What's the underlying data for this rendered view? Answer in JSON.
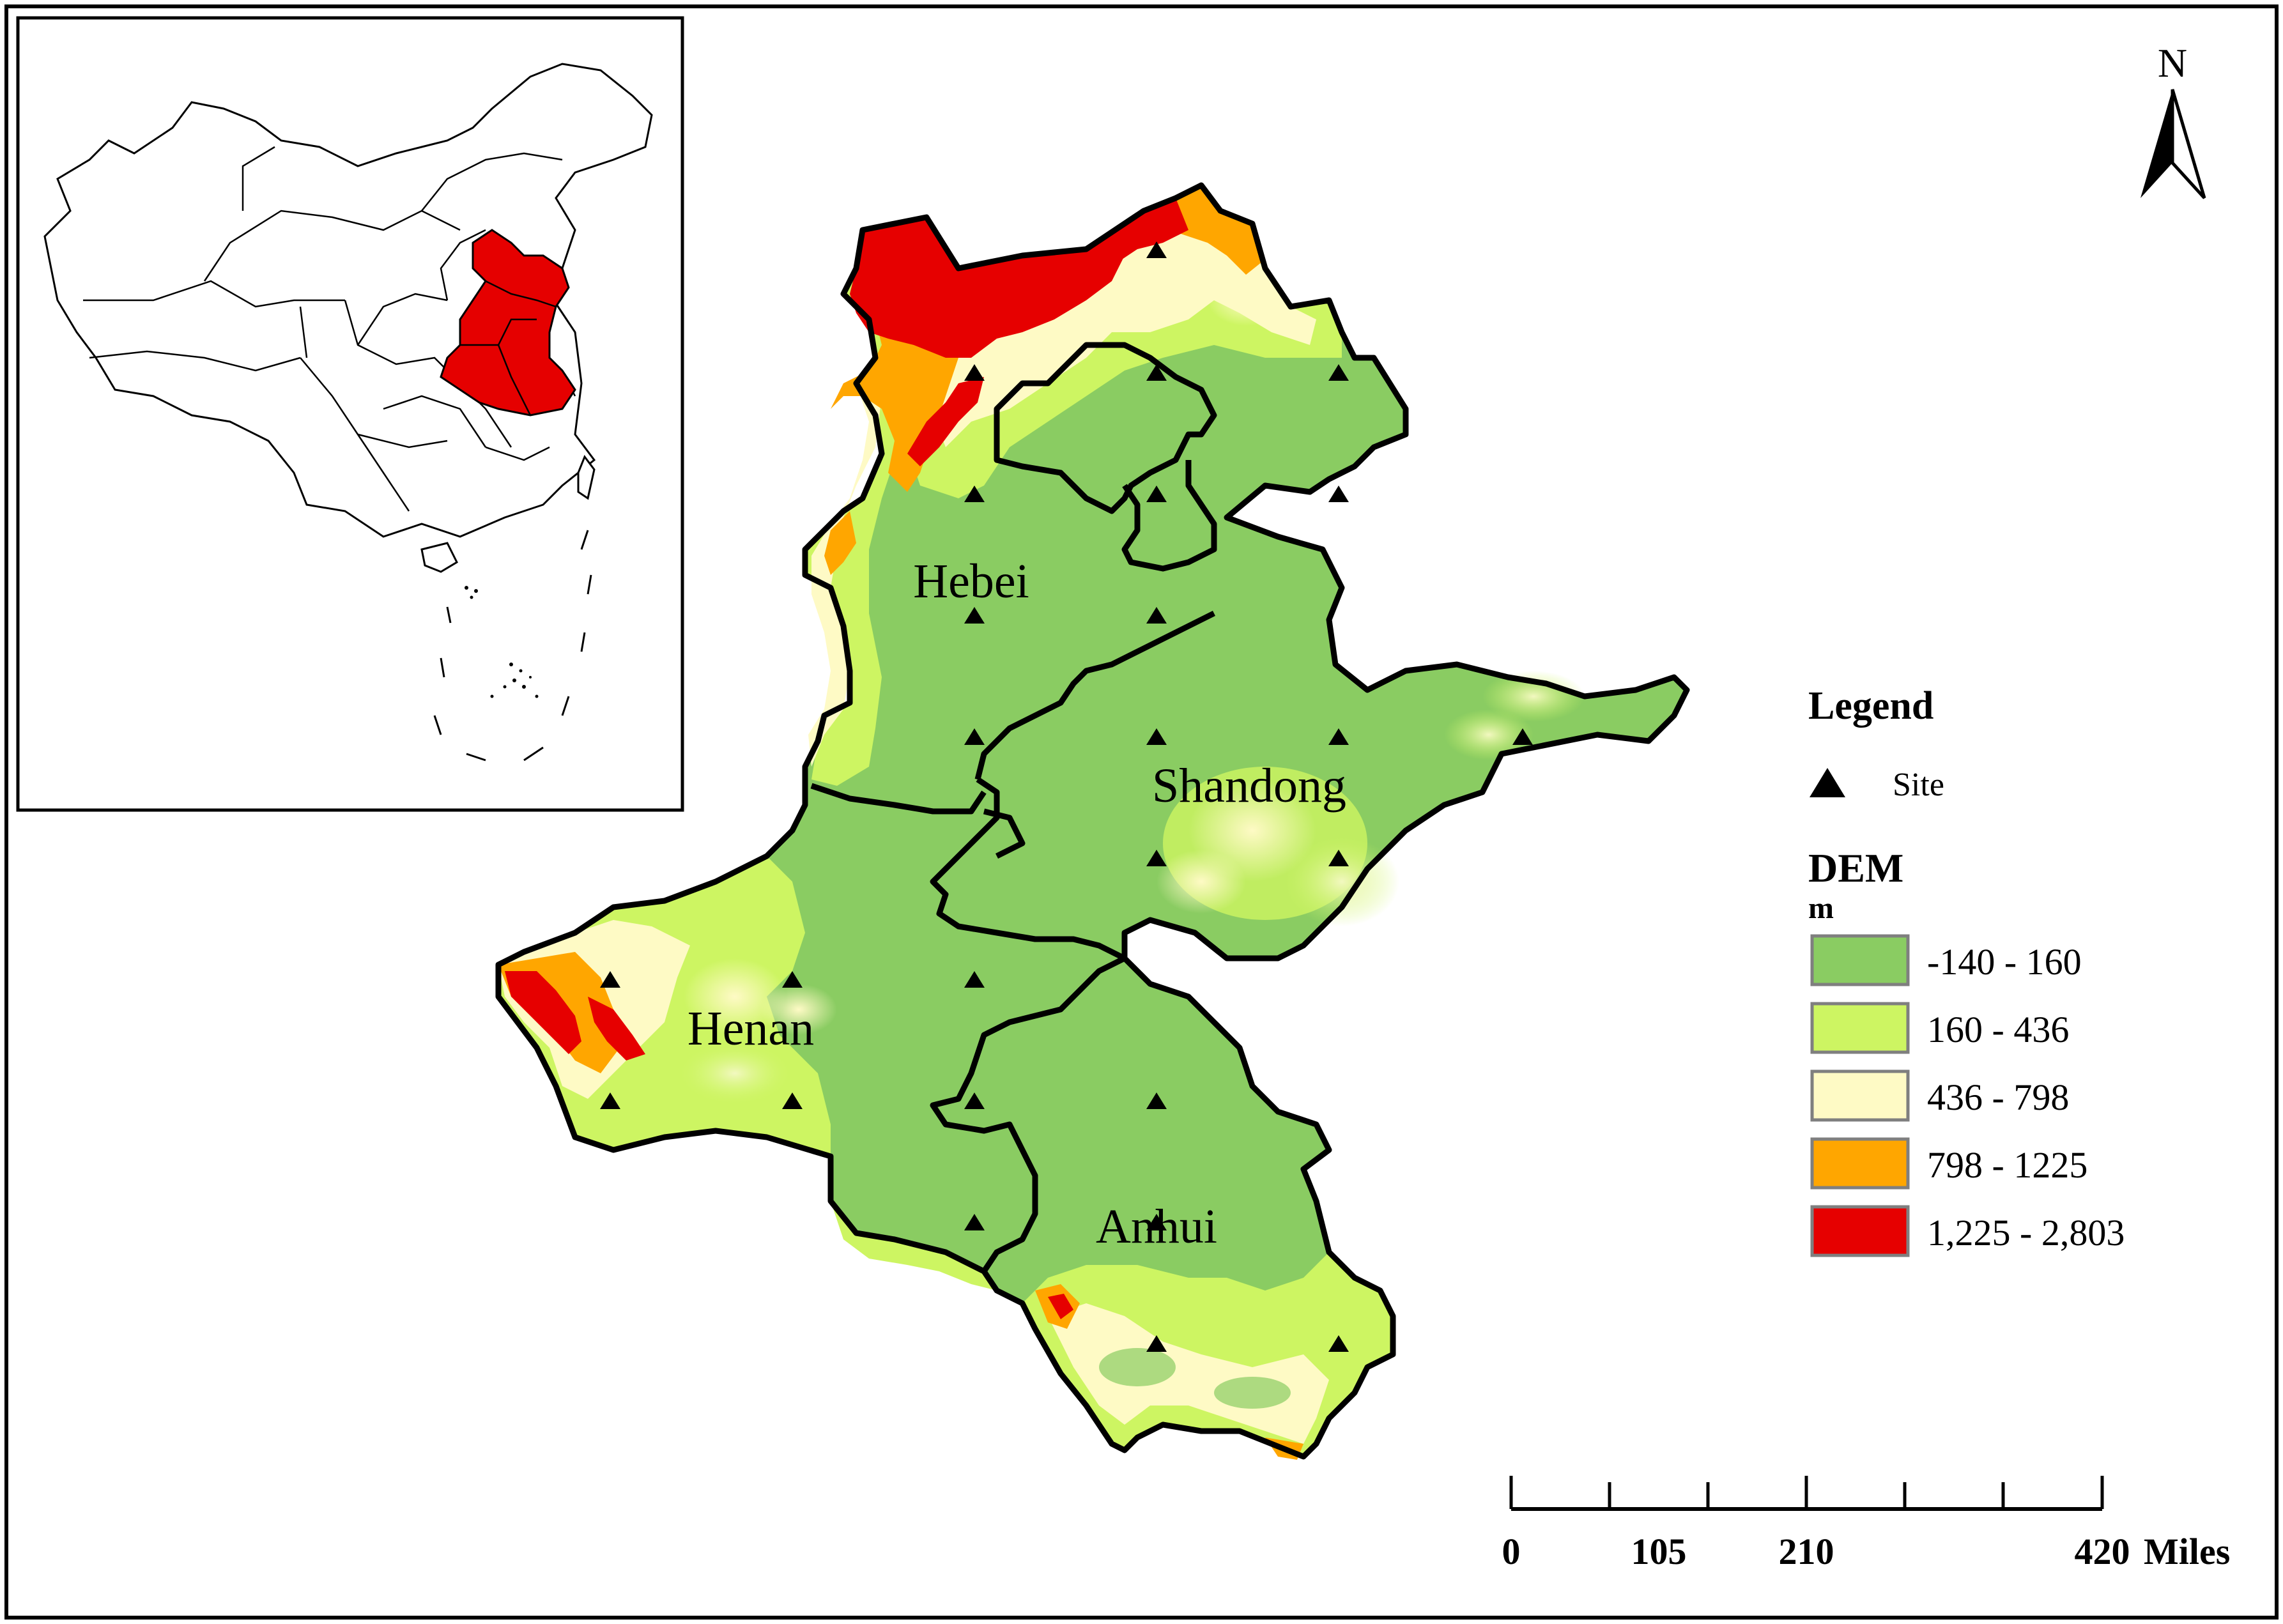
{
  "inset": {
    "highlight_color": "#e50000"
  },
  "north_arrow": {
    "label": "N"
  },
  "provinces": [
    {
      "id": "hebei",
      "name": "Hebei"
    },
    {
      "id": "shandong",
      "name": "Shandong"
    },
    {
      "id": "henan",
      "name": "Henan"
    },
    {
      "id": "anhui",
      "name": "Anhui"
    }
  ],
  "legend": {
    "title": "Legend",
    "site_label": "Site",
    "dem_title": "DEM",
    "dem_unit": "m",
    "classes": [
      {
        "label": "-140 - 160",
        "color": "#8acc62"
      },
      {
        "label": "160 - 436",
        "color": "#cdf562"
      },
      {
        "label": "436 - 798",
        "color": "#fefac5"
      },
      {
        "label": "798 - 1225",
        "color": "#ffa600"
      },
      {
        "label": "1,225 - 2,803",
        "color": "#e60000"
      }
    ]
  },
  "scale_bar": {
    "ticks": [
      "0",
      "105",
      "210",
      "420"
    ],
    "unit": "Miles"
  }
}
